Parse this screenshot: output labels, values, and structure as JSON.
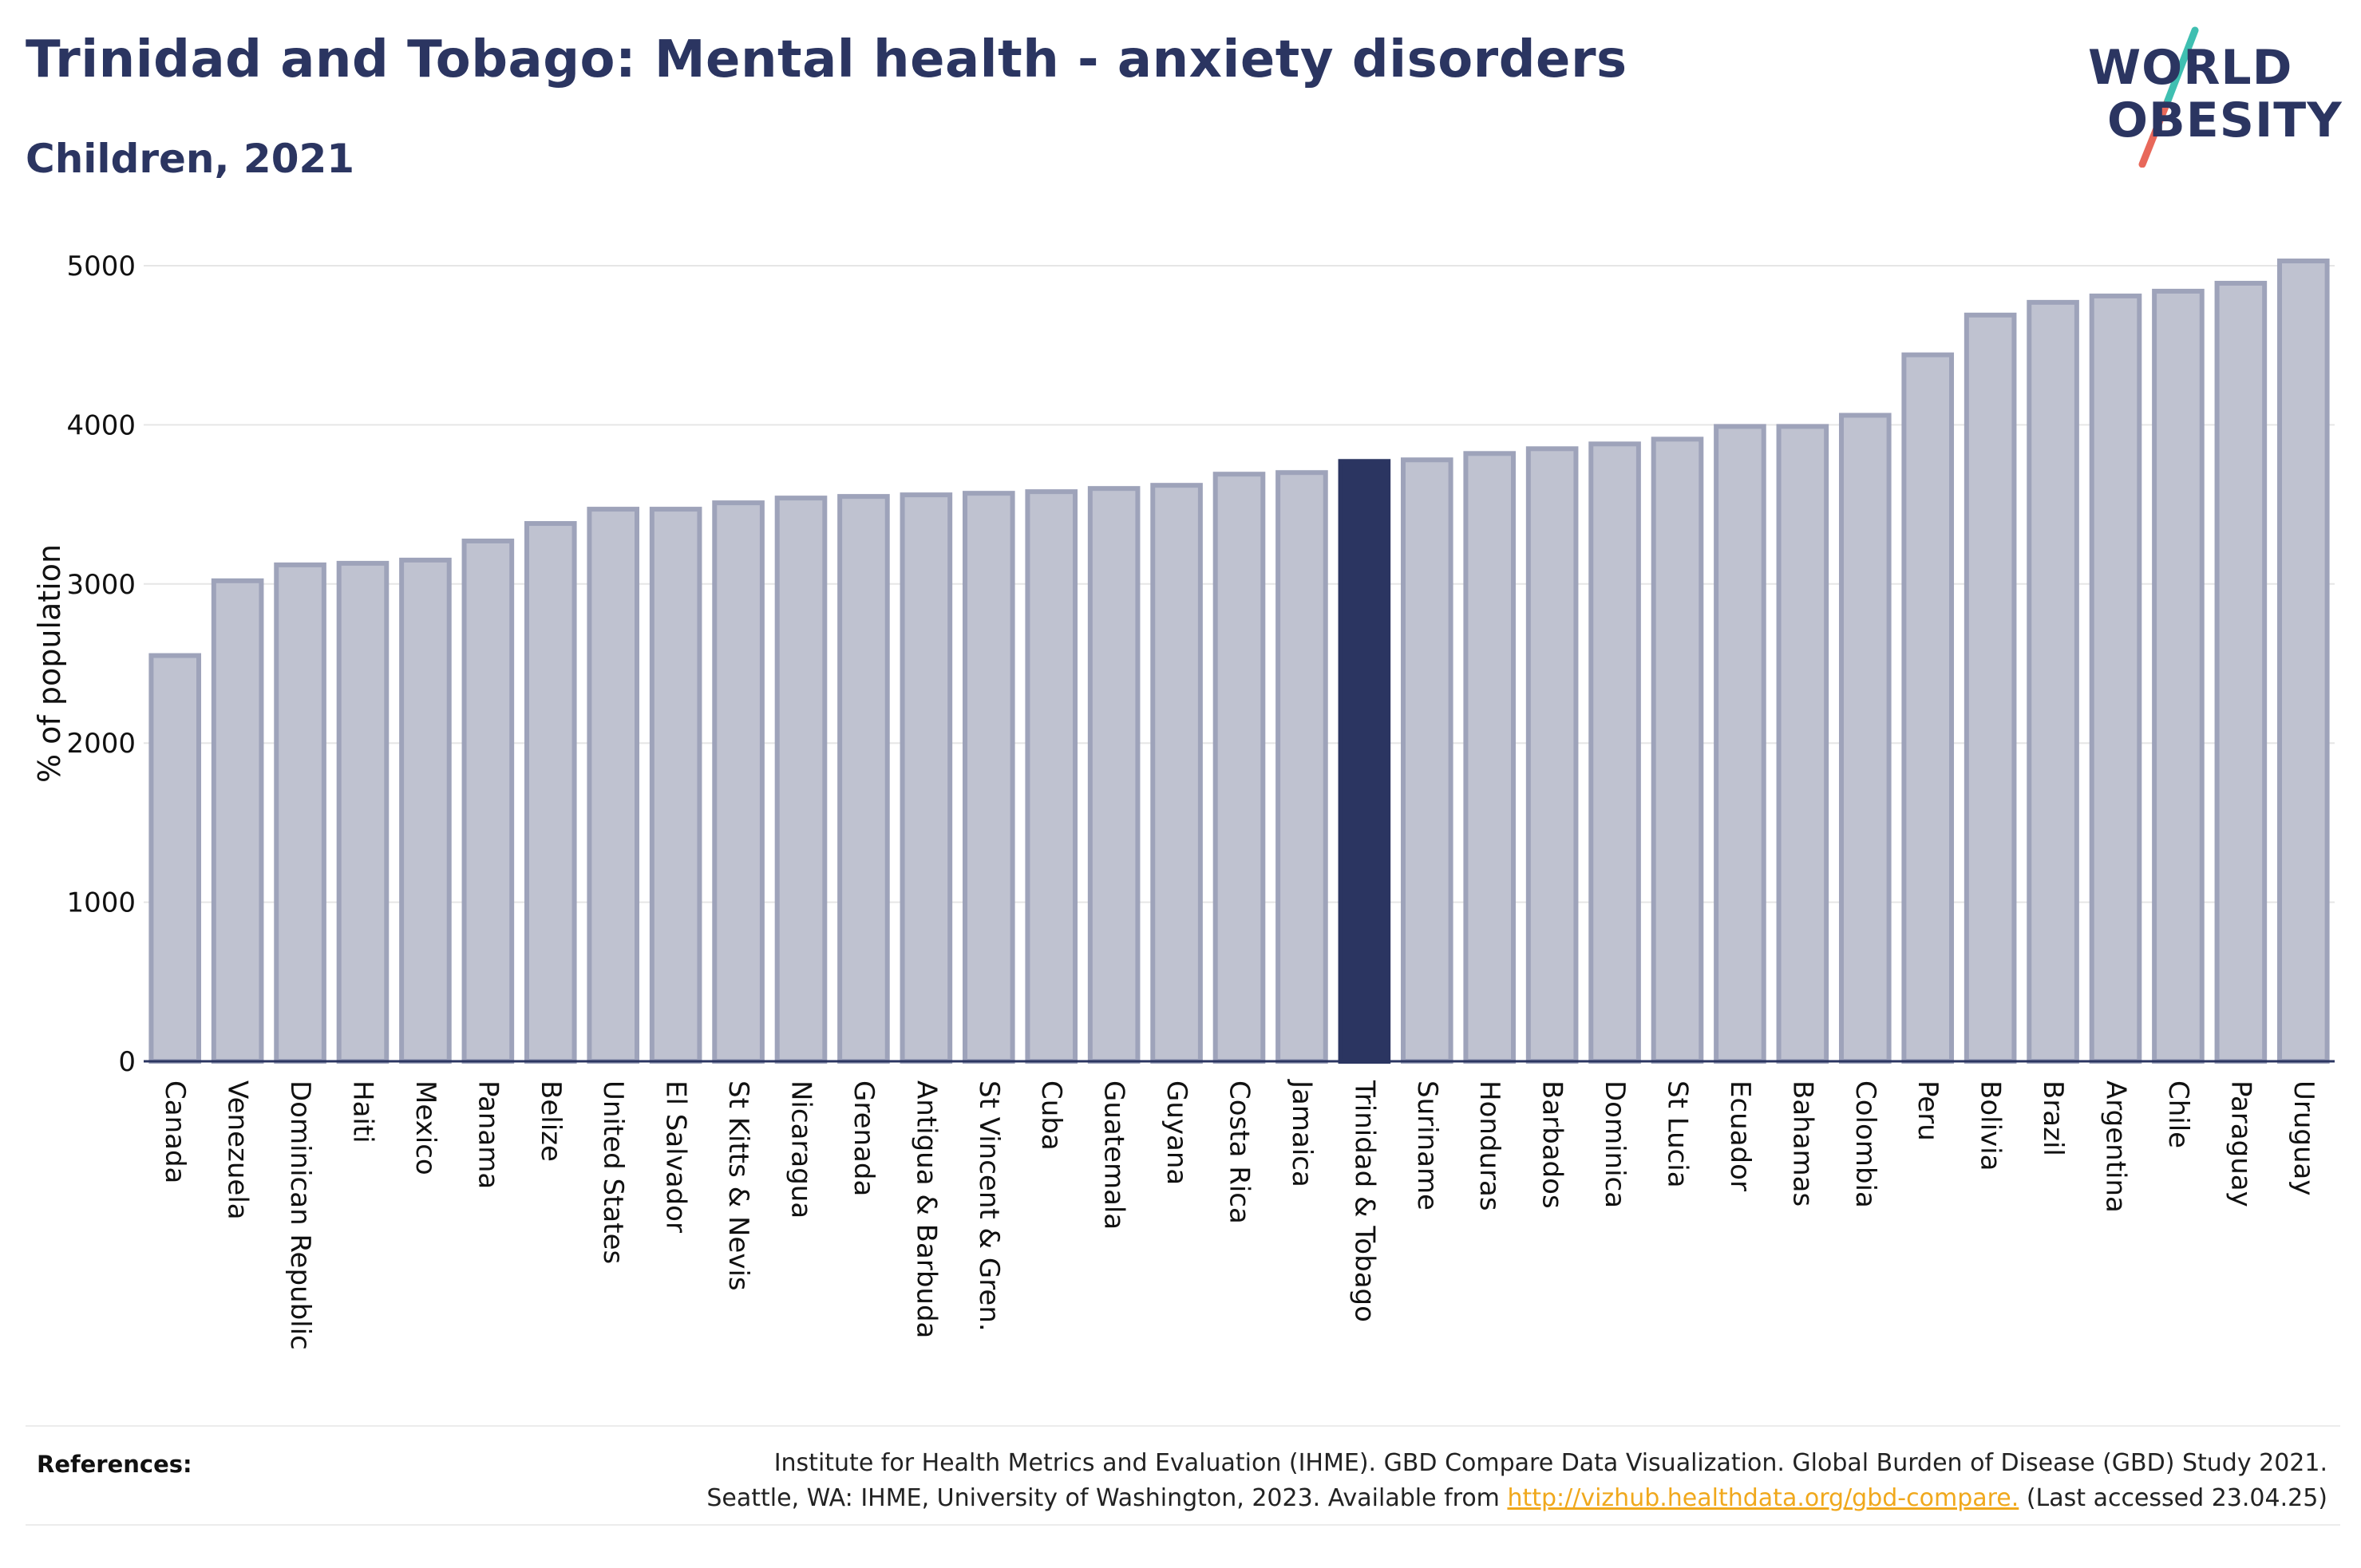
{
  "header": {
    "title": "Trinidad and Tobago: Mental health - anxiety disorders",
    "subtitle": "Children, 2021"
  },
  "logo": {
    "line1": "WORLD",
    "line2": "OBESITY"
  },
  "colors": {
    "highlight": "#2b3561",
    "bar": "#bfc2d0",
    "bar_border": "#9ea3ba",
    "logo_teal": "#3fbfb1",
    "logo_coral": "#e8685a",
    "link": "#f0a81c"
  },
  "chart_data": {
    "type": "bar",
    "ylabel": "% of population",
    "ylim": [
      0,
      5000
    ],
    "yticks": [
      0,
      1000,
      2000,
      3000,
      4000,
      5000
    ],
    "highlight": "Trinidad & Tobago",
    "categories": [
      "Canada",
      "Venezuela",
      "Dominican Republic",
      "Haiti",
      "Mexico",
      "Panama",
      "Belize",
      "United States",
      "El Salvador",
      "St Kitts & Nevis",
      "Nicaragua",
      "Grenada",
      "Antigua & Barbuda",
      "St Vincent & Gren.",
      "Cuba",
      "Guatemala",
      "Guyana",
      "Costa Rica",
      "Jamaica",
      "Trinidad & Tobago",
      "Suriname",
      "Honduras",
      "Barbados",
      "Dominica",
      "St Lucia",
      "Ecuador",
      "Bahamas",
      "Colombia",
      "Peru",
      "Bolivia",
      "Brazil",
      "Argentina",
      "Chile",
      "Paraguay",
      "Uruguay"
    ],
    "values": [
      2550,
      3020,
      3120,
      3130,
      3150,
      3270,
      3380,
      3470,
      3470,
      3510,
      3540,
      3550,
      3560,
      3570,
      3580,
      3600,
      3620,
      3690,
      3700,
      3770,
      3780,
      3820,
      3850,
      3880,
      3910,
      3990,
      3990,
      4060,
      4440,
      4690,
      4770,
      4810,
      4840,
      4890,
      5030
    ]
  },
  "footer": {
    "references_label": "References:",
    "ref_line1": "Institute for Health Metrics and Evaluation (IHME). GBD Compare Data Visualization. Global Burden of Disease (GBD) Study 2021.",
    "ref_line2_pre": "Seattle, WA: IHME, University of Washington, 2023. Available from ",
    "ref_link": "http://vizhub.healthdata.org/gbd-compare.",
    "ref_line2_post": " (Last accessed 23.04.25)"
  }
}
